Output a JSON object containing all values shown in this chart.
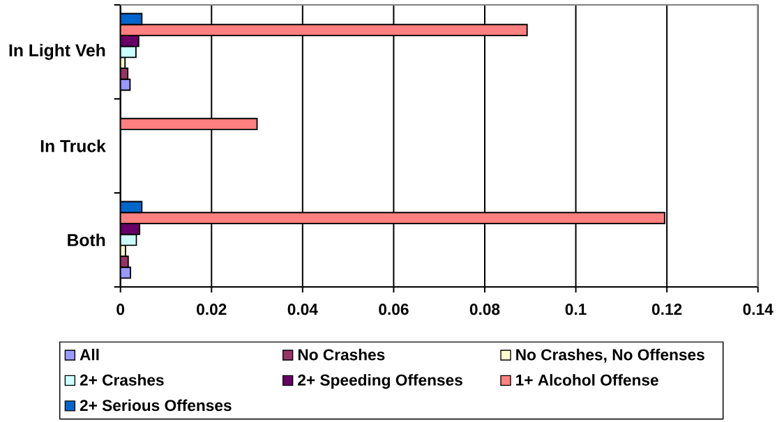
{
  "chart_data": {
    "type": "bar",
    "orientation": "horizontal",
    "categories": [
      "In Light Veh",
      "In Truck",
      "Both"
    ],
    "series": [
      {
        "name": "All",
        "color": "#9999ff",
        "values": [
          0.0021,
          0,
          0.0022
        ]
      },
      {
        "name": "No Crashes",
        "color": "#993366",
        "values": [
          0.0016,
          0,
          0.0017
        ]
      },
      {
        "name": "No Crashes, No Offenses",
        "color": "#ffffcc",
        "values": [
          0.001,
          0,
          0.0011
        ]
      },
      {
        "name": "2+ Crashes",
        "color": "#ccffff",
        "values": [
          0.0034,
          0,
          0.0035
        ]
      },
      {
        "name": "2+ Speeding Offenses",
        "color": "#660066",
        "values": [
          0.004,
          0,
          0.0042
        ]
      },
      {
        "name": "1+ Alcohol Offense",
        "color": "#ff8080",
        "values": [
          0.0893,
          0.03,
          0.1195
        ]
      },
      {
        "name": "2+ Serious Offenses",
        "color": "#0066cc",
        "values": [
          0.0047,
          0,
          0.0047
        ]
      }
    ],
    "xlim": [
      0,
      0.14
    ],
    "xticks": [
      0,
      0.02,
      0.04,
      0.06,
      0.08,
      0.1,
      0.12,
      0.14
    ],
    "grid": "x",
    "legend": "bottom"
  }
}
